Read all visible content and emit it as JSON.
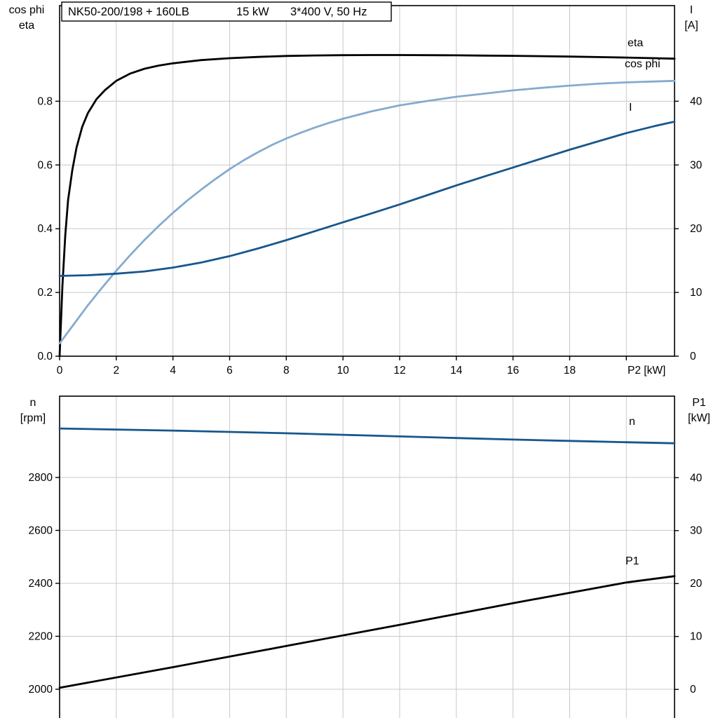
{
  "page": {
    "background": "#ffffff"
  },
  "title": {
    "model": "NK50-200/198 + 160LB",
    "power": "15 kW",
    "voltage": "3*400 V, 50 Hz"
  },
  "colors": {
    "grid": "#c9c9c9",
    "frame": "#000000",
    "black": "#000000",
    "light_blue": "#85abce",
    "dark_blue": "#17568c"
  },
  "chart_data": [
    {
      "type": "line",
      "panel": "motor-curves-top",
      "x_range": [
        0,
        21.7
      ],
      "x_ticks": [
        0,
        2,
        4,
        6,
        8,
        10,
        12,
        14,
        16,
        18,
        20
      ],
      "x_tick_labels": [
        "0",
        "2",
        "4",
        "6",
        "8",
        "10",
        "12",
        "14",
        "16",
        "18",
        ""
      ],
      "x_axis_label": "P2 [kW]",
      "grid": true,
      "left_axis": {
        "title_lines": [
          "cos phi",
          "eta"
        ],
        "range": [
          0,
          1.1
        ],
        "ticks": [
          0,
          0.2,
          0.4,
          0.6,
          0.8
        ],
        "tick_labels": [
          "0.0",
          "0.2",
          "0.4",
          "0.6",
          "0.8"
        ]
      },
      "right_axis": {
        "title_lines": [
          "I",
          "[A]"
        ],
        "range": [
          0,
          55
        ],
        "ticks": [
          0,
          10,
          20,
          30,
          40
        ],
        "tick_labels": [
          "0",
          "10",
          "20",
          "30",
          "40"
        ]
      },
      "series": [
        {
          "name": "eta",
          "label": "eta",
          "axis": "left",
          "color": "#000000",
          "points": [
            [
              0,
              0
            ],
            [
              0.1,
              0.22
            ],
            [
              0.2,
              0.38
            ],
            [
              0.3,
              0.49
            ],
            [
              0.45,
              0.585
            ],
            [
              0.6,
              0.655
            ],
            [
              0.8,
              0.72
            ],
            [
              1,
              0.763
            ],
            [
              1.3,
              0.806
            ],
            [
              1.6,
              0.835
            ],
            [
              2,
              0.864
            ],
            [
              2.5,
              0.887
            ],
            [
              3,
              0.902
            ],
            [
              3.5,
              0.912
            ],
            [
              4,
              0.919
            ],
            [
              5,
              0.929
            ],
            [
              6,
              0.935
            ],
            [
              7,
              0.939
            ],
            [
              8,
              0.942
            ],
            [
              9,
              0.9435
            ],
            [
              10,
              0.9445
            ],
            [
              11,
              0.945
            ],
            [
              12,
              0.945
            ],
            [
              13,
              0.9445
            ],
            [
              14,
              0.944
            ],
            [
              15,
              0.9432
            ],
            [
              16,
              0.9425
            ],
            [
              17,
              0.9413
            ],
            [
              18,
              0.94
            ],
            [
              19,
              0.9385
            ],
            [
              20,
              0.937
            ],
            [
              21,
              0.935
            ],
            [
              21.7,
              0.9335
            ]
          ]
        },
        {
          "name": "cos phi",
          "label": "cos phi",
          "axis": "left",
          "color": "#85abce",
          "points": [
            [
              0,
              0.04
            ],
            [
              0.5,
              0.1
            ],
            [
              1,
              0.16
            ],
            [
              1.5,
              0.215
            ],
            [
              2,
              0.268
            ],
            [
              2.5,
              0.318
            ],
            [
              3,
              0.365
            ],
            [
              3.5,
              0.409
            ],
            [
              4,
              0.45
            ],
            [
              4.5,
              0.488
            ],
            [
              5,
              0.523
            ],
            [
              5.5,
              0.556
            ],
            [
              6,
              0.587
            ],
            [
              6.5,
              0.615
            ],
            [
              7,
              0.64
            ],
            [
              7.5,
              0.663
            ],
            [
              8,
              0.683
            ],
            [
              8.5,
              0.701
            ],
            [
              9,
              0.717
            ],
            [
              9.5,
              0.732
            ],
            [
              10,
              0.745
            ],
            [
              11,
              0.768
            ],
            [
              12,
              0.787
            ],
            [
              13,
              0.801
            ],
            [
              14,
              0.814
            ],
            [
              15,
              0.824
            ],
            [
              16,
              0.834
            ],
            [
              17,
              0.842
            ],
            [
              18,
              0.849
            ],
            [
              19,
              0.855
            ],
            [
              20,
              0.859
            ],
            [
              21,
              0.862
            ],
            [
              21.7,
              0.864
            ]
          ]
        },
        {
          "name": "I",
          "label": "I",
          "axis": "right",
          "color": "#17568c",
          "points": [
            [
              0,
              12.6
            ],
            [
              1,
              12.7
            ],
            [
              2,
              12.95
            ],
            [
              3,
              13.3
            ],
            [
              4,
              13.9
            ],
            [
              5,
              14.7
            ],
            [
              6,
              15.7
            ],
            [
              7,
              16.9
            ],
            [
              8,
              18.2
            ],
            [
              9,
              19.6
            ],
            [
              10,
              21
            ],
            [
              11,
              22.4
            ],
            [
              12,
              23.8
            ],
            [
              13,
              25.3
            ],
            [
              14,
              26.8
            ],
            [
              15,
              28.2
            ],
            [
              16,
              29.6
            ],
            [
              17,
              31
            ],
            [
              18,
              32.4
            ],
            [
              19,
              33.7
            ],
            [
              20,
              35
            ],
            [
              21,
              36.1
            ],
            [
              21.7,
              36.8
            ]
          ]
        }
      ]
    },
    {
      "type": "line",
      "panel": "speed-power-bottom",
      "x_range": [
        0,
        21.7
      ],
      "x_ticks": [
        0,
        2,
        4,
        6,
        8,
        10,
        12,
        14,
        16,
        18,
        20
      ],
      "x_tick_labels": [
        "",
        "",
        "",
        "",
        "",
        "",
        "",
        "",
        "",
        "",
        ""
      ],
      "x_axis_label": "",
      "grid": true,
      "left_axis": {
        "title_lines": [
          "n",
          "[rpm]"
        ],
        "range": [
          1875.5,
          3107
        ],
        "ticks": [
          2000,
          2200,
          2400,
          2600,
          2800
        ],
        "tick_labels": [
          "2000",
          "2200",
          "2400",
          "2600",
          "2800"
        ]
      },
      "right_axis": {
        "title_lines": [
          "P1",
          "[kW]"
        ],
        "range": [
          -6.2,
          55.4
        ],
        "ticks": [
          0,
          10,
          20,
          30,
          40
        ],
        "tick_labels": [
          "0",
          "10",
          "20",
          "30",
          "40"
        ]
      },
      "series": [
        {
          "name": "n",
          "label": "n",
          "axis": "left",
          "color": "#17568c",
          "points": [
            [
              0,
              2985
            ],
            [
              2,
              2981
            ],
            [
              4,
              2977
            ],
            [
              6,
              2972
            ],
            [
              8,
              2967
            ],
            [
              10,
              2961
            ],
            [
              12,
              2955
            ],
            [
              14,
              2949
            ],
            [
              16,
              2943
            ],
            [
              18,
              2938
            ],
            [
              20,
              2933
            ],
            [
              21.7,
              2929
            ]
          ]
        },
        {
          "name": "P1",
          "label": "P1",
          "axis": "right",
          "color": "#000000",
          "points": [
            [
              0,
              0.3
            ],
            [
              4,
              4.2
            ],
            [
              8,
              8.2
            ],
            [
              12,
              12.2
            ],
            [
              16,
              16.3
            ],
            [
              20,
              20.2
            ],
            [
              21.7,
              21.4
            ]
          ]
        }
      ]
    }
  ]
}
